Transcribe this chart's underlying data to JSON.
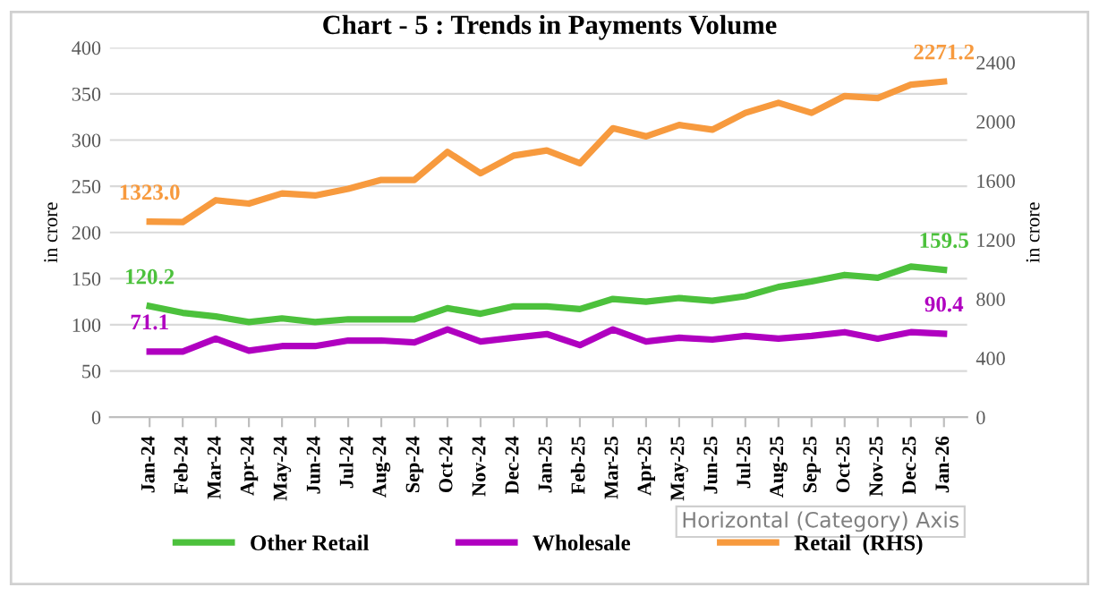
{
  "chart_data": {
    "type": "line",
    "title": "Chart - 5 : Trends in Payments Volume",
    "ylabel": "in crore",
    "y2label": "in crore",
    "categories": [
      "Jan-24",
      "Feb-24",
      "Mar-24",
      "Apr-24",
      "May-24",
      "Jun-24",
      "Jul-24",
      "Aug-24",
      "Sep-24",
      "Oct-24",
      "Nov-24",
      "Dec-24",
      "Jan-25",
      "Feb-25",
      "Mar-25",
      "Apr-25",
      "May-25",
      "Jun-25",
      "Jul-25",
      "Aug-25",
      "Sep-25",
      "Oct-25",
      "Nov-25",
      "Dec-25",
      "Jan-26"
    ],
    "series": [
      {
        "name": "Other Retail",
        "color": "#4cc13c",
        "values": [
          120.2,
          113,
          109,
          103,
          107,
          103,
          106,
          106,
          106,
          118,
          112,
          120,
          120,
          117,
          128,
          125,
          129,
          126,
          131,
          141,
          147,
          154,
          151,
          163,
          159.5
        ],
        "value_labels": [
          "120.2",
          null,
          null,
          null,
          null,
          null,
          null,
          null,
          null,
          null,
          null,
          null,
          null,
          null,
          null,
          null,
          null,
          null,
          null,
          null,
          null,
          null,
          null,
          null,
          "159.5"
        ]
      },
      {
        "name": "Wholesale",
        "color": "#b000c0",
        "values": [
          71.1,
          71,
          85,
          72,
          77,
          77,
          83,
          83,
          81,
          95,
          82,
          86,
          90,
          78,
          95,
          82,
          86,
          84,
          88,
          85,
          88,
          92,
          85,
          92,
          90.4
        ],
        "value_labels": [
          "71.1",
          null,
          null,
          null,
          null,
          null,
          null,
          null,
          null,
          null,
          null,
          null,
          null,
          null,
          null,
          null,
          null,
          null,
          null,
          null,
          null,
          null,
          null,
          null,
          "90.4"
        ]
      },
      {
        "name": "Retail  (RHS)",
        "color": "#f79a3e",
        "axis": "y2",
        "values": [
          1323.0,
          1320,
          1468,
          1445,
          1514,
          1500,
          1545,
          1605,
          1605,
          1795,
          1650,
          1770,
          1805,
          1718,
          1955,
          1900,
          1977,
          1945,
          2059,
          2127,
          2059,
          2173,
          2159,
          2250,
          2271.2
        ],
        "value_labels": [
          "1323.0",
          null,
          null,
          null,
          null,
          null,
          null,
          null,
          null,
          null,
          null,
          null,
          null,
          null,
          null,
          null,
          null,
          null,
          null,
          null,
          null,
          null,
          null,
          null,
          "2271.2"
        ]
      }
    ],
    "ylim": [
      0,
      400
    ],
    "yticks": [
      0,
      50,
      100,
      150,
      200,
      250,
      300,
      350,
      400
    ],
    "y2lim": [
      0,
      2500
    ],
    "y2ticks": [
      0,
      400,
      800,
      1200,
      1600,
      2000,
      2400
    ],
    "grid": "y",
    "legend": "bottom",
    "marker": "none",
    "line_style": "solid",
    "annotations": [
      "Horizontal (Category) Axis"
    ]
  }
}
